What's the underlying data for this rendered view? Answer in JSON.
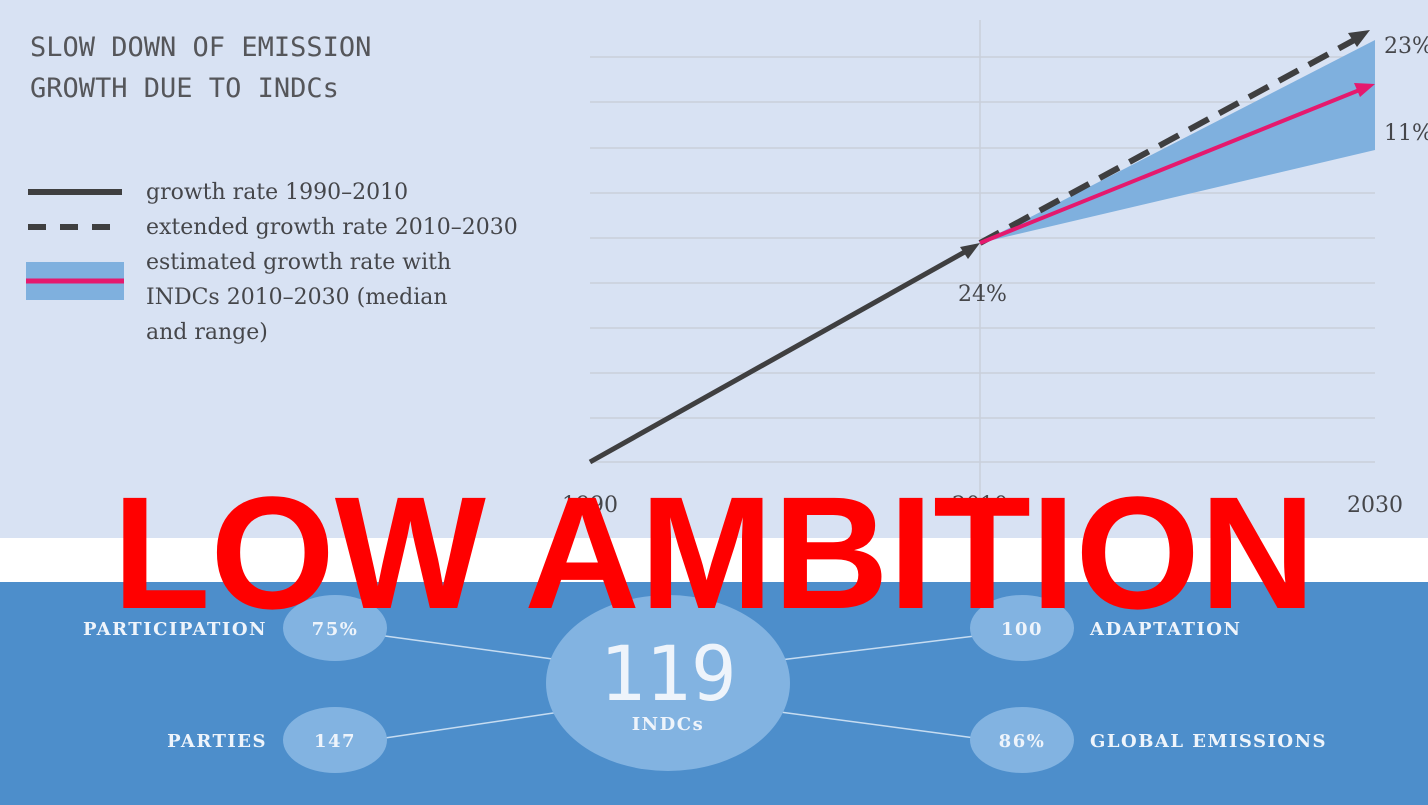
{
  "header": {
    "title_lines": [
      "SLOW DOWN OF EMISSION",
      "GROWTH DUE TO INDCs"
    ]
  },
  "legend": [
    {
      "lines": [
        "growth rate 1990–2010"
      ]
    },
    {
      "lines": [
        "extended growth rate 2010–2030"
      ]
    },
    {
      "lines": [
        "estimated growth rate with",
        "INDCs 2010–2030 (median",
        "and range)"
      ]
    }
  ],
  "x_labels": [
    "1990",
    "2010",
    "2030"
  ],
  "annotations": [
    "24%",
    "23%",
    "11%"
  ],
  "overlay": "LOW AMBITION",
  "stats": {
    "center": {
      "value": "119",
      "label": "INDCs"
    },
    "participation": {
      "label": "PARTICIPATION",
      "value": "75%"
    },
    "parties": {
      "label": "PARTIES",
      "value": "147"
    },
    "adaptation": {
      "label": "ADAPTATION",
      "value": "100"
    },
    "global_emissions": {
      "label": "GLOBAL EMISSIONS",
      "value": "86%"
    }
  }
}
